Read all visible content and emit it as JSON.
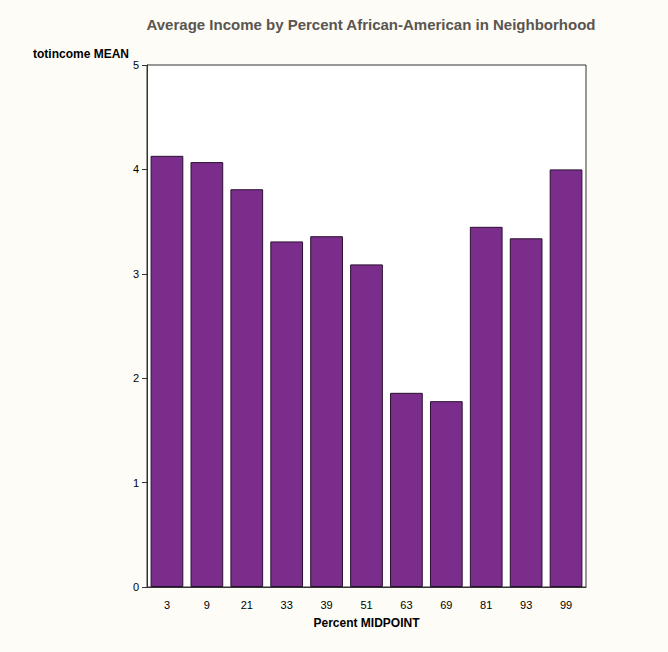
{
  "chart_data": {
    "type": "bar",
    "title": "Average Income by Percent African-American in Neighborhood",
    "x_label": "Percent MIDPOINT",
    "y_label": "totincome MEAN",
    "categories": [
      "3",
      "9",
      "21",
      "33",
      "39",
      "51",
      "63",
      "69",
      "81",
      "93",
      "99"
    ],
    "values": [
      4.13,
      4.07,
      3.81,
      3.31,
      3.36,
      3.09,
      1.86,
      1.78,
      3.45,
      3.34,
      4.0
    ],
    "color": "#7b2d8b",
    "ylim": [
      0,
      5
    ],
    "yticks": [
      0,
      1,
      2,
      3,
      4,
      5
    ],
    "grid": false
  }
}
